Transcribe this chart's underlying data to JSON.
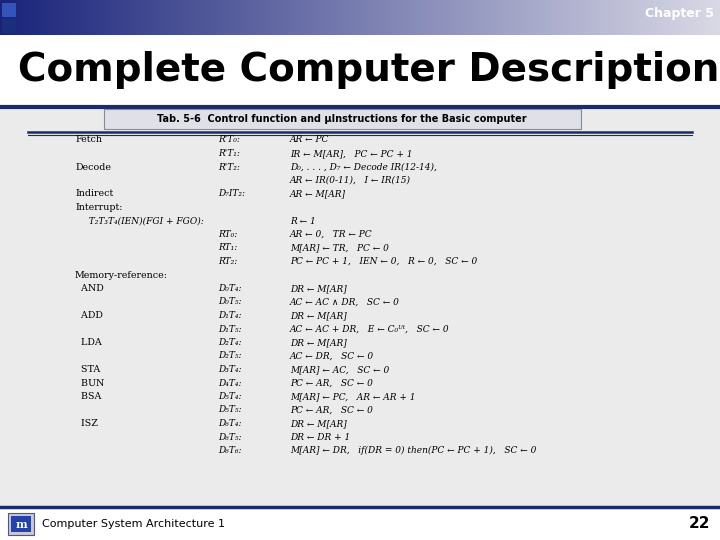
{
  "chapter_text": "Chapter 5",
  "title": "Complete Computer Description",
  "subtitle": "Tab. 5-6  Control function and μInstructions for the Basic computer",
  "bg_color": "#f0f0f0",
  "footer_text": "Computer System Architecture 1",
  "page_number": "22",
  "table_rows": [
    [
      "Fetch",
      "R'T₀:",
      "AR ← PC"
    ],
    [
      "",
      "R'T₁:",
      "IR ← M[AR],   PC ← PC + 1"
    ],
    [
      "Decode",
      "R'T₂:",
      "D₀, . . . , D₇ ← Decode IR(12-14),"
    ],
    [
      "",
      "",
      "AR ← IR(0-11),   I ← IR(15)"
    ],
    [
      "Indirect",
      "D₇IT₂:",
      "AR ← M[AR]"
    ],
    [
      "Interrupt:",
      "",
      ""
    ],
    [
      "  T₂T₃T₄(IEN)(FGI + FGO):",
      "",
      "R ← 1"
    ],
    [
      "",
      "RT₀:",
      "AR ← 0,   TR ← PC"
    ],
    [
      "",
      "RT₁:",
      "M[AR] ← TR,   PC ← 0"
    ],
    [
      "",
      "RT₂:",
      "PC ← PC + 1,   IEN ← 0,   R ← 0,   SC ← 0"
    ],
    [
      "Memory-reference:",
      "",
      ""
    ],
    [
      "  AND",
      "D₀T₄:",
      "DR ← M[AR]"
    ],
    [
      "",
      "D₀T₅:",
      "AC ← AC ∧ DR,   SC ← 0"
    ],
    [
      "  ADD",
      "D₁T₄:",
      "DR ← M[AR]"
    ],
    [
      "",
      "D₁T₅:",
      "AC ← AC + DR,   E ← C₀ᵁᵗ,   SC ← 0"
    ],
    [
      "  LDA",
      "D₂T₄:",
      "DR ← M[AR]"
    ],
    [
      "",
      "D₂T₅:",
      "AC ← DR,   SC ← 0"
    ],
    [
      "  STA",
      "D₃T₄:",
      "M[AR] ← AC,   SC ← 0"
    ],
    [
      "  BUN",
      "D₄T₄:",
      "PC ← AR,   SC ← 0"
    ],
    [
      "  BSA",
      "D₅T₄:",
      "M[AR] ← PC,   AR ← AR + 1"
    ],
    [
      "",
      "D₅T₅:",
      "PC ← AR,   SC ← 0"
    ],
    [
      "  ISZ",
      "D₆T₄:",
      "DR ← M[AR]"
    ],
    [
      "",
      "D₆T₅:",
      "DR ← DR + 1"
    ],
    [
      "",
      "D₆T₆:",
      "M[AR] ← DR,   if(DR = 0) then(PC ← PC + 1),   SC ← 0"
    ]
  ]
}
